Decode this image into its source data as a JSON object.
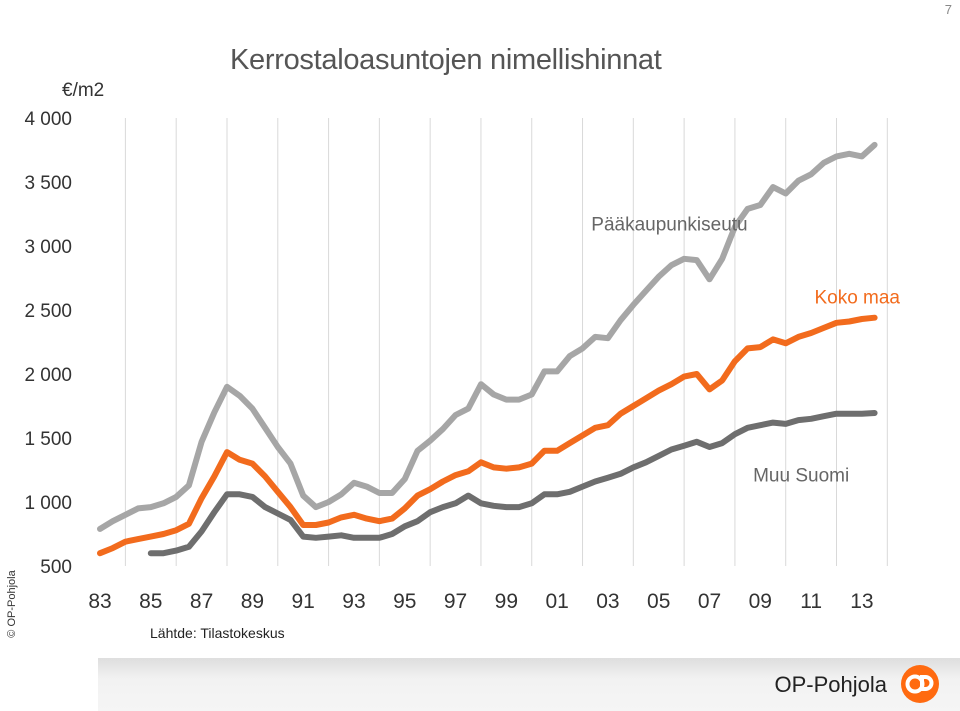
{
  "page_number": "7",
  "copyright": "© OP-Pohjola",
  "source": "Lähtde: Tilastokeskus",
  "brand": {
    "name": "OP-Pohjola",
    "logo_icon": "op-logo-icon",
    "accent": "#ff6a10"
  },
  "colors": {
    "paakaupunkiseutu": "#a6a6a6",
    "koko_maa": "#f26b1d",
    "muu_suomi": "#6e6e6e",
    "grid": "#d9d9d9"
  },
  "chart_data": {
    "type": "line",
    "title": "Kerrostaloasuntojen nimellishinnat",
    "ylabel": "€/m2",
    "xlabel": "",
    "ylim": [
      500,
      4000
    ],
    "xlim": [
      1983,
      2014.5
    ],
    "y_ticks": [
      "4 000",
      "3 500",
      "3 000",
      "2 500",
      "2 000",
      "1 500",
      "1 000",
      "500"
    ],
    "x_ticks": [
      "83",
      "85",
      "87",
      "89",
      "91",
      "93",
      "95",
      "97",
      "99",
      "01",
      "03",
      "05",
      "07",
      "09",
      "11",
      "13"
    ],
    "grid": "vertical",
    "series": [
      {
        "name": "Pääkaupunkiseutu",
        "x": [
          1983,
          1983.5,
          1984,
          1984.5,
          1985,
          1985.5,
          1986,
          1986.5,
          1987,
          1987.5,
          1988,
          1988.5,
          1989,
          1989.5,
          1990,
          1990.5,
          1991,
          1991.5,
          1992,
          1992.5,
          1993,
          1993.5,
          1994,
          1994.5,
          1995,
          1995.5,
          1996,
          1996.5,
          1997,
          1997.5,
          1998,
          1998.5,
          1999,
          1999.5,
          2000,
          2000.5,
          2001,
          2001.5,
          2002,
          2002.5,
          2003,
          2003.5,
          2004,
          2004.5,
          2005,
          2005.5,
          2006,
          2006.5,
          2007,
          2007.5,
          2008,
          2008.5,
          2009,
          2009.5,
          2010,
          2010.5,
          2011,
          2011.5,
          2012,
          2012.5,
          2013,
          2013.5,
          2014
        ],
        "values": [
          790,
          850,
          900,
          950,
          960,
          990,
          1040,
          1130,
          1470,
          1700,
          1900,
          1830,
          1730,
          1580,
          1430,
          1300,
          1050,
          960,
          1000,
          1060,
          1150,
          1120,
          1070,
          1070,
          1180,
          1400,
          1480,
          1570,
          1680,
          1730,
          1920,
          1840,
          1800,
          1800,
          1840,
          2020,
          2020,
          2140,
          2200,
          2290,
          2280,
          2420,
          2540,
          2650,
          2760,
          2850,
          2900,
          2890,
          2740,
          2900,
          3150,
          3290,
          3320,
          3460,
          3410,
          3510,
          3560,
          3650,
          3700,
          3720,
          3700,
          3790,
          null
        ],
        "color": "#a6a6a6"
      },
      {
        "name": "Koko maa",
        "x": [
          1983,
          1983.5,
          1984,
          1984.5,
          1985,
          1985.5,
          1986,
          1986.5,
          1987,
          1987.5,
          1988,
          1988.5,
          1989,
          1989.5,
          1990,
          1990.5,
          1991,
          1991.5,
          1992,
          1992.5,
          1993,
          1993.5,
          1994,
          1994.5,
          1995,
          1995.5,
          1996,
          1996.5,
          1997,
          1997.5,
          1998,
          1998.5,
          1999,
          1999.5,
          2000,
          2000.5,
          2001,
          2001.5,
          2002,
          2002.5,
          2003,
          2003.5,
          2004,
          2004.5,
          2005,
          2005.5,
          2006,
          2006.5,
          2007,
          2007.5,
          2008,
          2008.5,
          2009,
          2009.5,
          2010,
          2010.5,
          2011,
          2011.5,
          2012,
          2012.5,
          2013,
          2013.5,
          2014
        ],
        "values": [
          600,
          640,
          690,
          710,
          730,
          750,
          780,
          830,
          1030,
          1200,
          1390,
          1330,
          1300,
          1200,
          1080,
          960,
          820,
          820,
          840,
          880,
          900,
          870,
          850,
          870,
          950,
          1050,
          1100,
          1160,
          1210,
          1240,
          1310,
          1270,
          1260,
          1270,
          1300,
          1400,
          1400,
          1460,
          1520,
          1580,
          1600,
          1690,
          1750,
          1810,
          1870,
          1920,
          1980,
          2000,
          1880,
          1950,
          2100,
          2200,
          2210,
          2270,
          2240,
          2290,
          2320,
          2360,
          2400,
          2410,
          2430,
          2440,
          null
        ],
        "color": "#f26b1d"
      },
      {
        "name": "Muu Suomi",
        "x": [
          1983,
          1983.5,
          1984,
          1984.5,
          1985,
          1985.5,
          1986,
          1986.5,
          1987,
          1987.5,
          1988,
          1988.5,
          1989,
          1989.5,
          1990,
          1990.5,
          1991,
          1991.5,
          1992,
          1992.5,
          1993,
          1993.5,
          1994,
          1994.5,
          1995,
          1995.5,
          1996,
          1996.5,
          1997,
          1997.5,
          1998,
          1998.5,
          1999,
          1999.5,
          2000,
          2000.5,
          2001,
          2001.5,
          2002,
          2002.5,
          2003,
          2003.5,
          2004,
          2004.5,
          2005,
          2005.5,
          2006,
          2006.5,
          2007,
          2007.5,
          2008,
          2008.5,
          2009,
          2009.5,
          2010,
          2010.5,
          2011,
          2011.5,
          2012,
          2012.5,
          2013,
          2013.5,
          2014
        ],
        "values": [
          null,
          null,
          null,
          null,
          600,
          600,
          620,
          650,
          770,
          920,
          1060,
          1060,
          1040,
          960,
          910,
          860,
          730,
          720,
          730,
          740,
          720,
          720,
          720,
          750,
          810,
          850,
          920,
          960,
          990,
          1050,
          990,
          970,
          960,
          960,
          990,
          1060,
          1060,
          1080,
          1120,
          1160,
          1190,
          1220,
          1270,
          1310,
          1360,
          1410,
          1440,
          1470,
          1430,
          1460,
          1530,
          1580,
          1600,
          1620,
          1610,
          1640,
          1650,
          1670,
          1690,
          1690,
          1690,
          1695,
          null
        ],
        "color": "#6e6e6e"
      }
    ]
  }
}
